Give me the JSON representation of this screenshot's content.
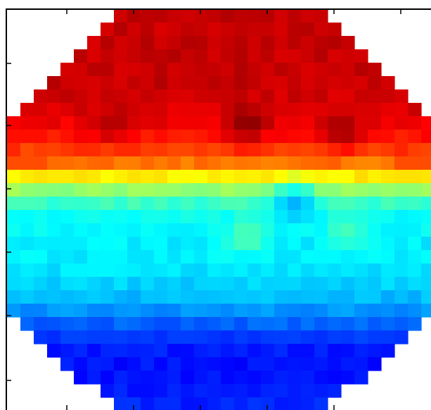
{
  "chart_data": {
    "type": "heatmap",
    "colormap": "jet",
    "grid": false,
    "rows": 30,
    "cols": 32,
    "mask": "octagon",
    "value_range": [
      0,
      1
    ],
    "row_profile": [
      0.93,
      0.93,
      0.93,
      0.93,
      0.93,
      0.93,
      0.92,
      0.91,
      0.89,
      0.86,
      0.82,
      0.76,
      0.64,
      0.52,
      0.43,
      0.38,
      0.37,
      0.36,
      0.36,
      0.35,
      0.33,
      0.31,
      0.27,
      0.22,
      0.18,
      0.15,
      0.14,
      0.14,
      0.15,
      0.16
    ],
    "hotspots": [
      {
        "row": 8,
        "col": 17.5,
        "value": 0.99
      },
      {
        "row": 8.5,
        "col": 24.5,
        "value": 0.97
      },
      {
        "row": 8,
        "col": 7.5,
        "value": 0.95
      },
      {
        "row": 16.5,
        "col": 17.5,
        "value": 0.46
      },
      {
        "row": 16,
        "col": 25,
        "value": 0.44
      },
      {
        "row": 14,
        "col": 21,
        "value": 0.3
      }
    ],
    "title": "",
    "xlabel": "",
    "ylabel": ""
  }
}
